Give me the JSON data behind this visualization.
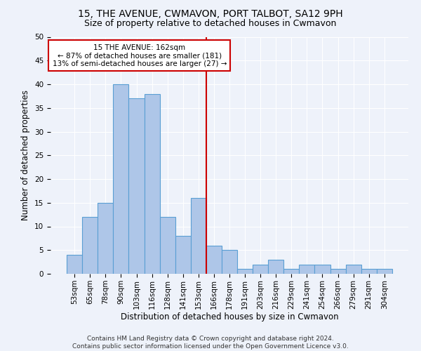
{
  "title1": "15, THE AVENUE, CWMAVON, PORT TALBOT, SA12 9PH",
  "title2": "Size of property relative to detached houses in Cwmavon",
  "xlabel": "Distribution of detached houses by size in Cwmavon",
  "ylabel": "Number of detached properties",
  "footnote1": "Contains HM Land Registry data © Crown copyright and database right 2024.",
  "footnote2": "Contains public sector information licensed under the Open Government Licence v3.0.",
  "bar_labels": [
    "53sqm",
    "65sqm",
    "78sqm",
    "90sqm",
    "103sqm",
    "116sqm",
    "128sqm",
    "141sqm",
    "153sqm",
    "166sqm",
    "178sqm",
    "191sqm",
    "203sqm",
    "216sqm",
    "229sqm",
    "241sqm",
    "254sqm",
    "266sqm",
    "279sqm",
    "291sqm",
    "304sqm"
  ],
  "bar_values": [
    4,
    12,
    15,
    40,
    37,
    38,
    12,
    8,
    16,
    6,
    5,
    1,
    2,
    3,
    1,
    2,
    2,
    1,
    2,
    1,
    1
  ],
  "bar_color": "#aec6e8",
  "bar_edge_color": "#5a9fd4",
  "property_label": "15 THE AVENUE: 162sqm",
  "annotation_line1": "← 87% of detached houses are smaller (181)",
  "annotation_line2": "13% of semi-detached houses are larger (27) →",
  "vline_color": "#cc0000",
  "vline_x_index": 8.5,
  "ylim": [
    0,
    50
  ],
  "yticks": [
    0,
    5,
    10,
    15,
    20,
    25,
    30,
    35,
    40,
    45,
    50
  ],
  "bg_color": "#eef2fa",
  "grid_color": "#ffffff",
  "title1_fontsize": 10,
  "title2_fontsize": 9,
  "axis_label_fontsize": 8.5,
  "tick_fontsize": 7.5,
  "footnote_fontsize": 6.5
}
